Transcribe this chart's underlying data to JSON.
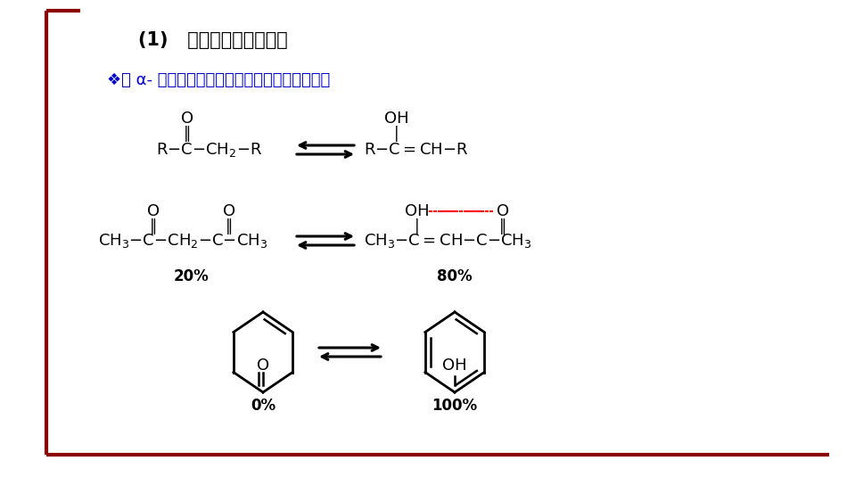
{
  "bg_color": "#FFFFFF",
  "border_color": "#8B0000",
  "title": "(1)   罰基式－烯醇式互变",
  "title_fontsize": 15,
  "subtitle": "❖有 α- 氢的醒或酮以烯醇式和罰基式平衡存在。",
  "subtitle_fontsize": 13,
  "pct_20": "20%",
  "pct_80": "80%",
  "pct_0": "0%",
  "pct_100": "100%",
  "dark_red": "#8B0000",
  "black": "#000000",
  "blue": "#0000CC",
  "red_color": "#CC0000"
}
